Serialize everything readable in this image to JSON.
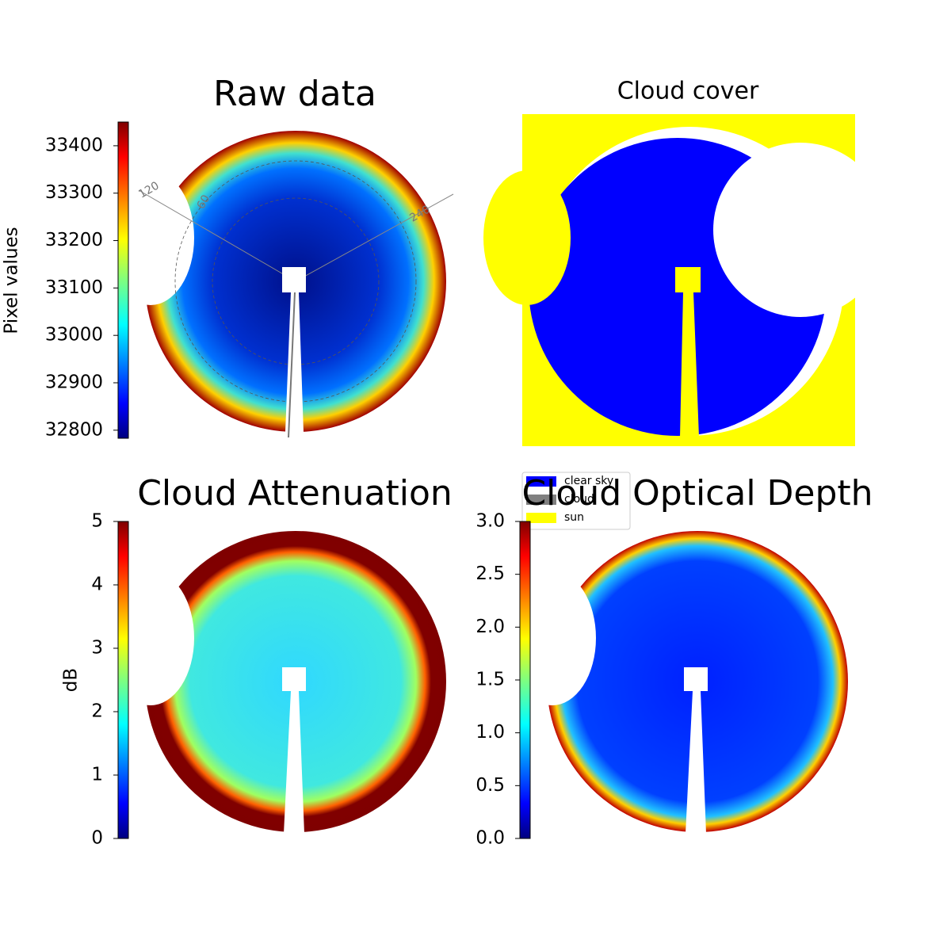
{
  "chart_data": [
    {
      "type": "heatmap",
      "title": "Raw data",
      "colorbar_label": "Pixel values",
      "colormap": "jet",
      "clim": [
        32783,
        33450
      ],
      "cticks": [
        32800,
        32900,
        33000,
        33100,
        33200,
        33300,
        33400
      ],
      "annotations": [
        "120",
        "60",
        "240"
      ]
    },
    {
      "type": "mask",
      "title": "Cloud cover",
      "series": [
        {
          "name": "clear sky",
          "color": "#0000ff"
        },
        {
          "name": "cloud",
          "color": "#808080"
        },
        {
          "name": "sun",
          "color": "#ffff00"
        }
      ]
    },
    {
      "type": "heatmap",
      "title": "Cloud Attenuation",
      "colorbar_label": "dB",
      "colormap": "jet",
      "clim": [
        0,
        5
      ],
      "cticks": [
        0,
        1,
        2,
        3,
        4,
        5
      ]
    },
    {
      "type": "heatmap",
      "title": "Cloud Optical Depth",
      "colormap": "jet",
      "clim": [
        0,
        3
      ],
      "cticks": [
        {
          "value": 0,
          "label": "0.0"
        },
        {
          "value": 0.5,
          "label": "0.5"
        },
        {
          "value": 1,
          "label": "1.0"
        },
        {
          "value": 1.5,
          "label": "1.5"
        },
        {
          "value": 2,
          "label": "2.0"
        },
        {
          "value": 2.5,
          "label": "2.5"
        },
        {
          "value": 3,
          "label": "3.0"
        }
      ]
    }
  ]
}
